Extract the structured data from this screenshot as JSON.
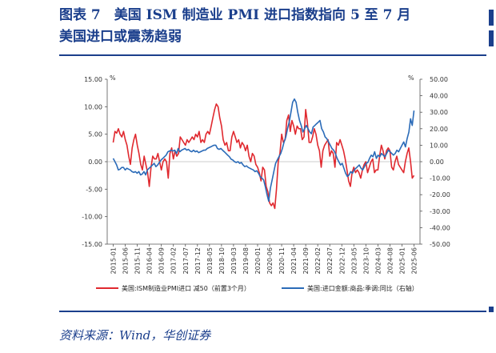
{
  "header": {
    "title_line1": "图表 7　美国 ISM 制造业 PMI 进口指数指向 5 至 7 月",
    "title_line2": "美国进口或震荡趋弱"
  },
  "source": "资料来源：Wind，华创证券",
  "colors": {
    "accent": "#1b3f8c",
    "red": "#e0292f",
    "blue": "#2b6bb8"
  },
  "chart_data": {
    "type": "line",
    "left_unit": "%",
    "right_unit": "%",
    "ylim_left": [
      -15,
      15
    ],
    "ylim_right": [
      -50,
      50
    ],
    "left_ticks": [
      "15.00",
      "10.00",
      "5.00",
      "0.00",
      "-5.00",
      "-10.00",
      "-15.00"
    ],
    "right_ticks": [
      "50.00",
      "40.00",
      "30.00",
      "20.00",
      "10.00",
      "0.00",
      "-10.00",
      "-20.00",
      "-30.00",
      "-40.00",
      "-50.00"
    ],
    "x_ticks": [
      "2015-01",
      "2015-06",
      "2015-11",
      "2016-04",
      "2016-09",
      "2017-02",
      "2017-07",
      "2017-12",
      "2018-05",
      "2018-10",
      "2019-03",
      "2019-08",
      "2020-01",
      "2020-06",
      "2020-11",
      "2021-04",
      "2021-09",
      "2022-02",
      "2022-07",
      "2022-12",
      "2023-05",
      "2023-10",
      "2024-03",
      "2024-08",
      "2025-01",
      "2025-06"
    ],
    "legend_position": "bottom",
    "series": [
      {
        "name": "美国:ISM制造业PMI进口 减50（前置3个月）",
        "axis": "left",
        "color": "#e0292f",
        "values": [
          3.5,
          5.5,
          5.2,
          6.0,
          5.0,
          4.5,
          5.5,
          4.0,
          3.0,
          1.0,
          -0.5,
          2.5,
          4.0,
          5.0,
          3.0,
          1.5,
          -0.5,
          -1.5,
          1.0,
          -0.5,
          -2.0,
          -4.5,
          -1.0,
          1.0,
          0.5,
          0.5,
          1.5,
          0.0,
          -1.5,
          0.0,
          0.5,
          0.0,
          -3.0,
          1.5,
          2.5,
          0.5,
          2.0,
          1.0,
          1.5,
          4.5,
          4.0,
          3.5,
          3.0,
          4.0,
          3.5,
          4.0,
          4.5,
          4.0,
          5.0,
          4.5,
          5.5,
          3.5,
          4.0,
          3.5,
          5.0,
          5.5,
          5.0,
          6.5,
          8.0,
          9.5,
          10.5,
          10.0,
          8.0,
          6.5,
          4.0,
          3.0,
          3.5,
          2.0,
          2.0,
          4.5,
          5.5,
          4.5,
          3.5,
          4.0,
          2.5,
          3.5,
          3.0,
          2.0,
          3.0,
          1.0,
          0.0,
          1.5,
          1.0,
          -0.5,
          -1.0,
          -2.0,
          -3.5,
          -1.0,
          -1.5,
          -4.5,
          -5.5,
          -7.5,
          -8.0,
          -7.5,
          -8.5,
          -5.0,
          0.0,
          1.5,
          5.0,
          3.5,
          4.0,
          7.5,
          8.5,
          5.5,
          7.5,
          6.5,
          5.0,
          6.5,
          6.0,
          6.0,
          4.0,
          4.5,
          9.5,
          7.0,
          3.5,
          3.5,
          4.5,
          6.0,
          5.0,
          3.0,
          2.0,
          -1.0,
          2.0,
          3.0,
          3.5,
          4.0,
          1.0,
          2.0,
          1.5,
          -1.0,
          3.5,
          3.0,
          4.0,
          3.0,
          2.0,
          0.5,
          -1.5,
          -3.5,
          -4.5,
          -2.0,
          -1.0,
          -2.0,
          -1.5,
          -2.0,
          -3.0,
          -1.5,
          -0.5,
          0.0,
          -2.0,
          -1.0,
          0.0,
          0.5,
          -2.0,
          -1.5,
          -1.5,
          1.0,
          3.0,
          2.0,
          0.5,
          2.0,
          2.5,
          2.0,
          -1.0,
          -1.5,
          0.0,
          1.0,
          -0.5,
          -1.0,
          -1.5,
          -2.0,
          0.0,
          1.5,
          2.5,
          0.0,
          -3.0,
          -2.5
        ]
      },
      {
        "name": "美国:进口金额:商品:季调:同比（右轴）",
        "axis": "right",
        "color": "#2b6bb8",
        "values": [
          2.0,
          0.0,
          -2.0,
          -5.0,
          -4.5,
          -3.5,
          -3.5,
          -5.0,
          -4.0,
          -4.5,
          -5.0,
          -6.0,
          -6.5,
          -6.0,
          -7.0,
          -6.0,
          -8.0,
          -7.5,
          -6.0,
          -8.0,
          -5.0,
          -4.0,
          -3.0,
          -2.0,
          -1.0,
          -3.0,
          -2.0,
          -0.5,
          1.0,
          2.0,
          3.0,
          4.0,
          6.0,
          6.5,
          7.0,
          6.5,
          7.0,
          5.0,
          8.0,
          6.0,
          7.0,
          7.5,
          8.0,
          7.0,
          7.5,
          6.5,
          6.0,
          7.0,
          6.0,
          6.5,
          5.5,
          6.0,
          6.5,
          7.0,
          7.0,
          8.0,
          8.5,
          9.0,
          9.5,
          10.0,
          10.0,
          8.0,
          7.5,
          8.0,
          7.0,
          6.0,
          5.0,
          4.0,
          3.0,
          1.5,
          1.0,
          0.0,
          -0.5,
          0.0,
          -1.0,
          -0.5,
          -2.0,
          -3.0,
          -2.5,
          -3.5,
          -4.0,
          -4.5,
          -5.0,
          -6.0,
          -5.5,
          -7.0,
          -9.0,
          -10.0,
          -11.0,
          -15.0,
          -20.0,
          -24.0,
          -16.0,
          -11.0,
          -6.0,
          -1.0,
          1.0,
          3.0,
          5.0,
          8.0,
          12.0,
          15.0,
          20.0,
          24.0,
          30.0,
          36.0,
          38.0,
          36.0,
          30.0,
          25.0,
          22.0,
          18.0,
          20.0,
          22.0,
          20.0,
          18.0,
          17.0,
          21.0,
          22.0,
          23.0,
          24.0,
          25.0,
          20.0,
          18.0,
          15.0,
          14.0,
          12.0,
          10.0,
          8.0,
          7.0,
          5.0,
          2.0,
          0.0,
          -2.0,
          -1.0,
          -4.0,
          -7.0,
          -9.0,
          -8.0,
          -6.0,
          -7.0,
          -5.0,
          -4.0,
          -3.0,
          -2.0,
          -4.0,
          -5.0,
          -3.0,
          -1.0,
          -0.5,
          2.0,
          4.0,
          3.0,
          6.0,
          2.0,
          4.0,
          3.0,
          5.0,
          4.0,
          3.0,
          5.0,
          7.0,
          6.0,
          5.0,
          4.0,
          5.0,
          7.0,
          6.0,
          8.0,
          10.0,
          12.0,
          9.0,
          14.0,
          18.0,
          26.0,
          22.0,
          31.0
        ]
      }
    ]
  }
}
